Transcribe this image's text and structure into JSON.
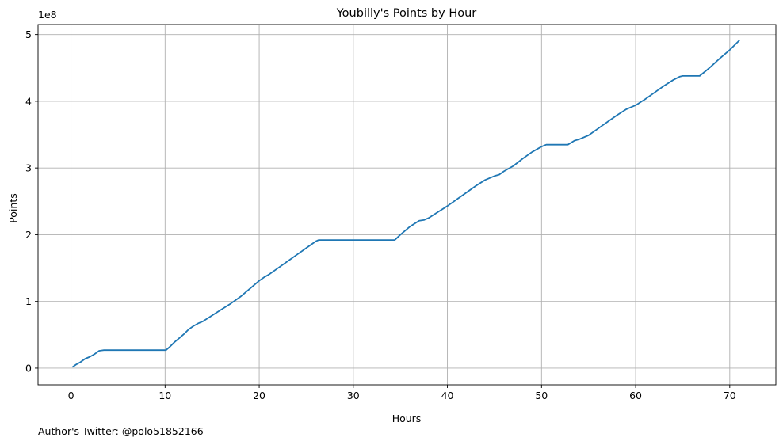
{
  "chart_data": {
    "type": "line",
    "title": "Youbilly's Points by Hour",
    "xlabel": "Hours",
    "ylabel": "Points",
    "y_offset_label": "1e8",
    "xlim": [
      -3.5,
      74.9
    ],
    "ylim": [
      -0.25,
      5.15
    ],
    "x_ticks": [
      0,
      10,
      20,
      30,
      40,
      50,
      60,
      70
    ],
    "x_tick_labels": [
      "0",
      "10",
      "20",
      "30",
      "40",
      "50",
      "60",
      "70"
    ],
    "y_ticks": [
      0,
      1,
      2,
      3,
      4,
      5
    ],
    "y_tick_labels": [
      "0",
      "1",
      "2",
      "3",
      "4",
      "5"
    ],
    "grid": true,
    "series": [
      {
        "name": "Points",
        "color": "#1f77b4",
        "x": [
          0.2,
          0.5,
          1.0,
          1.5,
          2.0,
          2.5,
          3.0,
          3.5,
          5.0,
          7.0,
          9.0,
          10.1,
          10.5,
          11.0,
          11.5,
          12.0,
          12.5,
          13.0,
          13.5,
          14.0,
          15.0,
          16.0,
          17.0,
          18.0,
          19.0,
          20.0,
          20.5,
          21.0,
          22.0,
          23.0,
          24.0,
          25.0,
          26.0,
          26.3,
          28.0,
          30.0,
          32.0,
          34.4,
          35.0,
          36.0,
          37.0,
          37.5,
          38.0,
          39.0,
          40.0,
          41.0,
          42.0,
          43.0,
          44.0,
          45.0,
          45.5,
          46.0,
          47.0,
          48.0,
          49.0,
          50.0,
          50.5,
          51.0,
          52.0,
          52.8,
          53.5,
          54.0,
          55.0,
          56.0,
          57.0,
          58.0,
          59.0,
          59.5,
          60.0,
          61.0,
          62.0,
          63.0,
          64.0,
          64.7,
          65.0,
          66.0,
          66.8,
          67.5,
          68.0,
          69.0,
          70.0,
          71.0
        ],
        "y": [
          0.02,
          0.05,
          0.09,
          0.14,
          0.17,
          0.21,
          0.26,
          0.27,
          0.27,
          0.27,
          0.27,
          0.27,
          0.32,
          0.39,
          0.45,
          0.51,
          0.58,
          0.63,
          0.67,
          0.7,
          0.79,
          0.88,
          0.97,
          1.07,
          1.19,
          1.31,
          1.36,
          1.4,
          1.5,
          1.6,
          1.7,
          1.8,
          1.9,
          1.92,
          1.92,
          1.92,
          1.92,
          1.92,
          2.0,
          2.12,
          2.21,
          2.22,
          2.25,
          2.34,
          2.43,
          2.53,
          2.63,
          2.73,
          2.82,
          2.88,
          2.9,
          2.95,
          3.03,
          3.14,
          3.24,
          3.32,
          3.35,
          3.35,
          3.35,
          3.35,
          3.41,
          3.43,
          3.49,
          3.59,
          3.69,
          3.79,
          3.88,
          3.91,
          3.94,
          4.03,
          4.13,
          4.23,
          4.32,
          4.37,
          4.38,
          4.38,
          4.38,
          4.46,
          4.52,
          4.65,
          4.77,
          4.91
        ]
      }
    ]
  },
  "footer": {
    "author_text": "Author's Twitter: @polo51852166"
  }
}
